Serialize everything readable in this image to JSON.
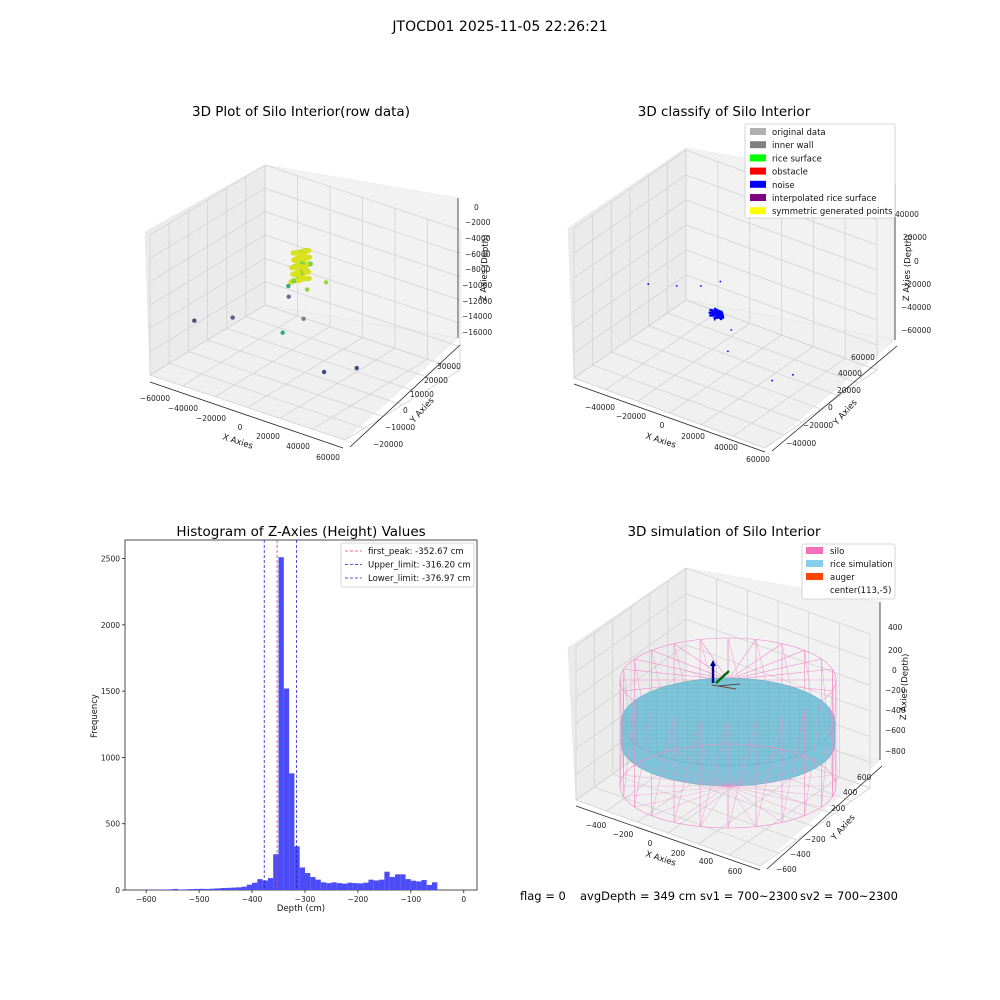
{
  "figure_title": "JTOCD01 2025-11-05 22:26:21",
  "footer": {
    "flag": "flag = 0",
    "avg_depth": "avgDepth = 349 cm",
    "sv1": "sv1 = 700~2300",
    "sv2": "sv2 = 700~2300"
  },
  "colors": {
    "hist_bar": "#4b4bf7",
    "first_peak": "#e8413c",
    "limits": "#2424c8",
    "silo": "#f48ac8",
    "rice": "#7ec4d9",
    "auger": "#ff4500"
  },
  "chart_data": [
    {
      "type": "scatter",
      "projection": "3d",
      "title": "3D Plot of Silo Interior(row data)",
      "xlabel": "X Axies",
      "ylabel": "Y Axies",
      "zlabel": "Z Axies (Depth)",
      "xticks": [
        "−60000",
        "−40000",
        "−20000",
        "0",
        "20000",
        "40000",
        "60000"
      ],
      "yticks": [
        "−20000",
        "−10000",
        "0",
        "10000",
        "20000",
        "30000"
      ],
      "zticks": [
        "0",
        "−2000",
        "−4000",
        "−6000",
        "−8000",
        "−10000",
        "−12000",
        "−14000",
        "−16000"
      ],
      "xlim": [
        -65000,
        65000
      ],
      "ylim": [
        -25000,
        35000
      ],
      "zlim": [
        -17000,
        0
      ],
      "grid": true,
      "colormap": "viridis",
      "points": [
        {
          "x": -61000,
          "y": -5000,
          "z": -13000,
          "c": "#46517e"
        },
        {
          "x": -38000,
          "y": -3000,
          "z": -11500,
          "c": "#5d5b8a"
        },
        {
          "x": -7000,
          "y": 2000,
          "z": -7800,
          "c": "#6e6b93"
        },
        {
          "x": -6000,
          "y": 1000,
          "z": -6300,
          "c": "#39a87d"
        },
        {
          "x": 4000,
          "y": 3000,
          "z": -6400,
          "c": "#8ccf3a"
        },
        {
          "x": 14000,
          "y": 5000,
          "z": -5200,
          "c": "#9bd93a"
        },
        {
          "x": 8000,
          "y": -2000,
          "z": -9000,
          "c": "#7b7e8a"
        },
        {
          "x": 3000,
          "y": -9000,
          "z": -10000,
          "c": "#2dab7a"
        },
        {
          "x": 46000,
          "y": -4000,
          "z": -12400,
          "c": "#3b4b85"
        },
        {
          "x": 37000,
          "y": -14000,
          "z": -12000,
          "c": "#3b4b85"
        }
      ],
      "dense_cluster": {
        "x": [
          -3000,
          3000
        ],
        "y": [
          0,
          6000
        ],
        "z": [
          -5500,
          -2000
        ],
        "c": "#d8e21c"
      }
    },
    {
      "type": "scatter",
      "projection": "3d",
      "title": "3D classify of Silo Interior",
      "xlabel": "X Axies",
      "ylabel": "Y Axies",
      "zlabel": "Z Axies (Depth)",
      "xticks": [
        "−40000",
        "−20000",
        "0",
        "20000",
        "40000",
        "60000"
      ],
      "yticks": [
        "−40000",
        "−20000",
        "0",
        "20000",
        "40000",
        "60000"
      ],
      "zticks": [
        "40000",
        "20000",
        "0",
        "−20000",
        "−40000",
        "−60000"
      ],
      "xlim": [
        -55000,
        65000
      ],
      "ylim": [
        -50000,
        65000
      ],
      "zlim": [
        -65000,
        45000
      ],
      "grid": true,
      "legend": {
        "placement": "top-right",
        "entries": [
          {
            "label": "original data",
            "color": "#b0b0b0"
          },
          {
            "label": "inner wall",
            "color": "#808080"
          },
          {
            "label": "rice surface",
            "color": "#00ff00"
          },
          {
            "label": "obstacle",
            "color": "#ff0000"
          },
          {
            "label": "noise",
            "color": "#0000ff"
          },
          {
            "label": "interpolated rice surface",
            "color": "#800080"
          },
          {
            "label": "symmetric generated points",
            "color": "#ffff00"
          }
        ]
      },
      "points": [
        {
          "x": -42000,
          "y": 5000,
          "z": -18000,
          "cls": "noise"
        },
        {
          "x": -26000,
          "y": 8000,
          "z": -14000,
          "cls": "noise"
        },
        {
          "x": -12000,
          "y": 10000,
          "z": -9000,
          "cls": "noise"
        },
        {
          "x": -1000,
          "y": 12000,
          "z": -2000,
          "cls": "noise"
        },
        {
          "x": 4000,
          "y": -2000,
          "z": -21000,
          "cls": "noise"
        },
        {
          "x": 12000,
          "y": 2000,
          "z": -27000,
          "cls": "noise"
        },
        {
          "x": 16000,
          "y": -8000,
          "z": -36000,
          "cls": "noise"
        },
        {
          "x": 45000,
          "y": -10000,
          "z": -44000,
          "cls": "noise"
        },
        {
          "x": 55000,
          "y": -5000,
          "z": -38000,
          "cls": "noise"
        }
      ],
      "dense_cluster": {
        "x": [
          -2000,
          6000
        ],
        "y": [
          0,
          6000
        ],
        "z": [
          -22000,
          -18000
        ],
        "cls": "noise"
      }
    },
    {
      "type": "bar",
      "title": "Histogram of Z-Axies (Height) Values",
      "xlabel": "Depth (cm)",
      "ylabel": "Frequency",
      "xlim": [
        -640,
        25
      ],
      "ylim": [
        0,
        2640
      ],
      "xticks": [
        "−600",
        "−500",
        "−400",
        "−300",
        "−200",
        "−100",
        "0"
      ],
      "yticks": [
        "0",
        "500",
        "1000",
        "1500",
        "2000",
        "2500"
      ],
      "bin_start": -600,
      "bin_width": 10,
      "values": [
        2,
        3,
        4,
        3,
        5,
        8,
        4,
        5,
        7,
        8,
        9,
        8,
        10,
        12,
        15,
        16,
        18,
        20,
        25,
        40,
        55,
        82,
        72,
        90,
        270,
        2510,
        1520,
        880,
        330,
        170,
        128,
        98,
        78,
        58,
        52,
        58,
        52,
        48,
        55,
        52,
        50,
        55,
        78,
        72,
        78,
        138,
        98,
        118,
        118,
        82,
        70,
        65,
        75,
        38,
        58
      ],
      "vlines": [
        {
          "label": "first_peak: -352.67 cm",
          "x": -352.67,
          "color": "#e8413c"
        },
        {
          "label": "Upper_limit: -316.20 cm",
          "x": -316.2,
          "color": "#2424c8"
        },
        {
          "label": "Lower_limit: -376.97 cm",
          "x": -376.97,
          "color": "#2424c8"
        }
      ],
      "legend": {
        "placement": "top-right"
      }
    },
    {
      "type": "surface",
      "projection": "3d",
      "title": "3D simulation of Silo Interior",
      "xlabel": "X Axies",
      "ylabel": "Y Axies",
      "zlabel": "Z Axies (Depth)",
      "xticks": [
        "−400",
        "−200",
        "0",
        "200",
        "400",
        "600"
      ],
      "yticks": [
        "−600",
        "−400",
        "−200",
        "0",
        "200",
        "400",
        "600"
      ],
      "zticks": [
        "400",
        "200",
        "0",
        "−200",
        "−400",
        "−600",
        "−800"
      ],
      "xlim": [
        -550,
        750
      ],
      "ylim": [
        -650,
        650
      ],
      "zlim": [
        -850,
        500
      ],
      "grid": true,
      "legend": {
        "placement": "top-right",
        "entries": [
          {
            "label": "silo",
            "color": "#f46fbb"
          },
          {
            "label": "rice simulation",
            "color": "#87ceeb"
          },
          {
            "label": "auger",
            "color": "#ff4500"
          },
          {
            "label": "center(113,-5)",
            "color": "none"
          }
        ]
      },
      "silo": {
        "center": [
          113,
          -5
        ],
        "radius": 550,
        "top": 0,
        "bottom": -850
      },
      "rice_level": -349
    }
  ]
}
